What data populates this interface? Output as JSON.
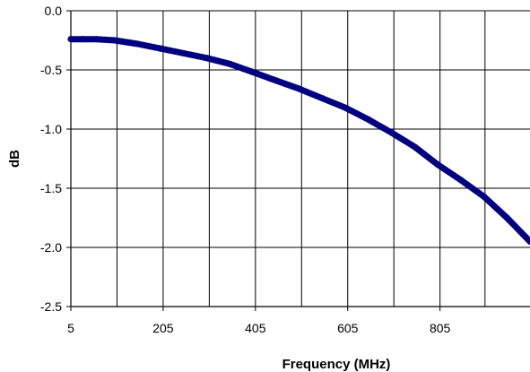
{
  "chart_data": {
    "type": "line",
    "title": "",
    "xlabel": "Frequency (MHz)",
    "ylabel": "dB",
    "xlim": [
      5,
      1000
    ],
    "ylim": [
      -2.5,
      0.0
    ],
    "x_ticks": [
      5,
      205,
      405,
      605,
      805
    ],
    "x_tick_labels": [
      "5",
      "205",
      "405",
      "605",
      "805"
    ],
    "y_ticks": [
      0.0,
      -0.5,
      -1.0,
      -1.5,
      -2.0,
      -2.5
    ],
    "y_tick_labels": [
      "0.0",
      "-0.5",
      "-1.0",
      "-1.5",
      "-2.0",
      "-2.5"
    ],
    "grid": true,
    "legend": "none",
    "series": [
      {
        "color": "#000080",
        "x": [
          5,
          30,
          60,
          100,
          150,
          200,
          250,
          300,
          350,
          400,
          450,
          500,
          550,
          600,
          650,
          700,
          750,
          800,
          850,
          900,
          950,
          1000
        ],
        "y": [
          -0.24,
          -0.24,
          -0.24,
          -0.25,
          -0.28,
          -0.32,
          -0.36,
          -0.4,
          -0.45,
          -0.52,
          -0.59,
          -0.66,
          -0.74,
          -0.82,
          -0.92,
          -1.03,
          -1.15,
          -1.3,
          -1.43,
          -1.57,
          -1.75,
          -1.95
        ]
      }
    ]
  }
}
